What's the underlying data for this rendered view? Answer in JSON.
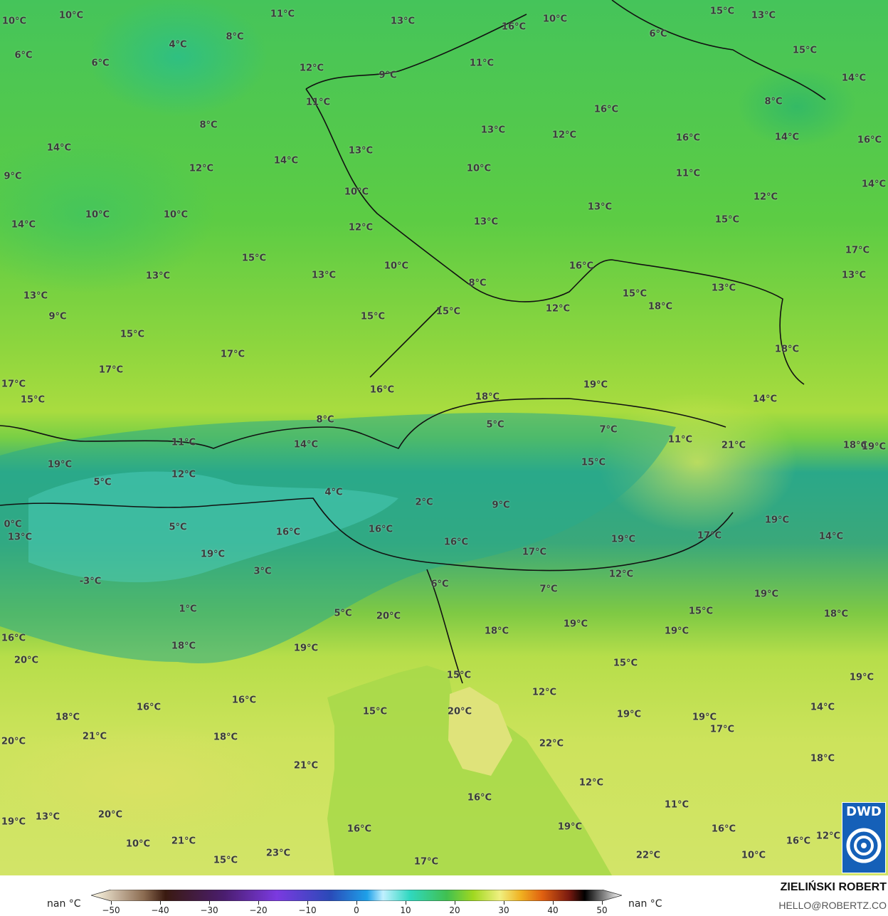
{
  "map": {
    "type": "temperature map",
    "temperature_labels": [
      "10°C",
      "10°C",
      "11°C",
      "13°C",
      "16°C",
      "10°C",
      "15°C",
      "13°C",
      "6°C",
      "15°C",
      "14°C",
      "6°C",
      "4°C",
      "8°C",
      "6°C",
      "12°C",
      "9°C",
      "11°C",
      "8°C",
      "11°C",
      "8°C",
      "16°C",
      "14°C",
      "12°C",
      "14°C",
      "13°C",
      "13°C",
      "12°C",
      "16°C",
      "14°C",
      "16°C",
      "9°C",
      "10°C",
      "11°C",
      "10°C",
      "14°C",
      "12°C",
      "10°C",
      "10°C",
      "14°C",
      "12°C",
      "13°C",
      "13°C",
      "15°C",
      "17°C",
      "15°C",
      "13°C",
      "13°C",
      "10°C",
      "16°C",
      "13°C",
      "13°C",
      "8°C",
      "13°C",
      "15°C",
      "18°C",
      "9°C",
      "15°C",
      "15°C",
      "12°C",
      "15°C",
      "17°C",
      "18°C",
      "17°C",
      "17°C",
      "15°C",
      "16°C",
      "18°C",
      "19°C",
      "14°C",
      "8°C",
      "5°C",
      "7°C",
      "11°C",
      "11°C",
      "14°C",
      "21°C",
      "18°C",
      "19°C",
      "19°C",
      "15°C",
      "12°C",
      "5°C",
      "4°C",
      "2°C",
      "9°C",
      "0°C",
      "13°C",
      "5°C",
      "16°C",
      "16°C",
      "19°C",
      "17°C",
      "14°C",
      "19°C",
      "16°C",
      "17°C",
      "19°C",
      "3°C",
      "12°C",
      "-3°C",
      "6°C",
      "7°C",
      "19°C",
      "1°C",
      "5°C",
      "20°C",
      "15°C",
      "18°C",
      "19°C",
      "18°C",
      "19°C",
      "16°C",
      "18°C",
      "19°C",
      "20°C",
      "15°C",
      "15°C",
      "19°C",
      "12°C",
      "16°C",
      "16°C",
      "14°C",
      "15°C",
      "20°C",
      "19°C",
      "19°C",
      "18°C",
      "21°C",
      "18°C",
      "17°C",
      "20°C",
      "22°C",
      "21°C",
      "18°C",
      "12°C",
      "16°C",
      "11°C",
      "13°C",
      "20°C",
      "19°C",
      "19°C",
      "16°C",
      "16°C",
      "10°C",
      "21°C",
      "12°C",
      "16°C",
      "23°C",
      "15°C",
      "17°C",
      "22°C",
      "10°C"
    ]
  },
  "colorbar": {
    "ticks": [
      "−50",
      "−40",
      "−30",
      "−20",
      "−10",
      "0",
      "10",
      "20",
      "30",
      "40",
      "50"
    ],
    "range": [
      -55,
      55
    ],
    "left_label": "nan °C",
    "right_label": "nan °C"
  },
  "credits": {
    "author": "ZIELIŃSKI ROBERT",
    "email": "HELLO@ROBERTZ.CO",
    "logo_text": "DWD"
  },
  "colors": {
    "sea": "#a6d94a",
    "alps": "#2a9f8c",
    "north": "#45c45a",
    "south": "#d2e468",
    "logo": "#1560b8"
  }
}
